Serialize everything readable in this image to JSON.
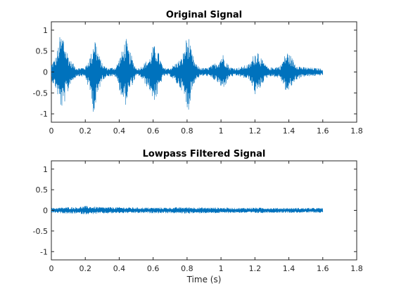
{
  "chart_data": [
    {
      "type": "line",
      "title": "Original Signal",
      "xlabel": "",
      "ylabel": "",
      "xlim": [
        0,
        1.8
      ],
      "ylim": [
        -1.2,
        1.2
      ],
      "xticks": [
        0,
        0.2,
        0.4,
        0.6,
        0.8,
        1,
        1.2,
        1.4,
        1.6,
        1.8
      ],
      "xtick_labels": [
        "0",
        "0.2",
        "0.4",
        "0.6",
        "0.8",
        "1",
        "1.2",
        "1.4",
        "1.6",
        "1.8"
      ],
      "yticks": [
        -1,
        -0.5,
        0,
        0.5,
        1
      ],
      "ytick_labels": [
        "-1",
        "-0.5",
        "0",
        "0.5",
        "1"
      ],
      "grid": false,
      "color": "#0072BD",
      "series": [
        {
          "x": [
            0,
            0.03,
            0.05,
            0.07,
            0.08,
            0.09,
            0.1,
            0.11,
            0.13,
            0.15,
            0.2,
            0.24,
            0.25,
            0.26,
            0.27,
            0.28,
            0.3,
            0.33,
            0.38,
            0.42,
            0.44,
            0.45,
            0.46,
            0.47,
            0.48,
            0.5,
            0.52,
            0.58,
            0.6,
            0.62,
            0.63,
            0.64,
            0.66,
            0.7,
            0.77,
            0.8,
            0.81,
            0.82,
            0.83,
            0.85,
            0.88,
            0.92,
            0.96,
            0.99,
            1.0,
            1.01,
            1.03,
            1.05,
            1.1,
            1.17,
            1.2,
            1.21,
            1.22,
            1.24,
            1.28,
            1.35,
            1.38,
            1.39,
            1.41,
            1.44,
            1.48,
            1.55,
            1.6
          ],
          "envelope_max": [
            0.2,
            0.4,
            0.85,
            0.95,
            0.7,
            0.55,
            0.45,
            0.3,
            0.2,
            0.1,
            0.12,
            0.5,
            0.9,
            0.85,
            0.6,
            0.45,
            0.2,
            0.1,
            0.12,
            0.55,
            0.85,
            0.65,
            0.5,
            0.45,
            0.3,
            0.1,
            0.1,
            0.35,
            0.65,
            0.6,
            0.5,
            0.35,
            0.1,
            0.1,
            0.35,
            0.9,
            0.85,
            0.6,
            0.45,
            0.2,
            0.1,
            0.1,
            0.2,
            0.3,
            0.4,
            0.45,
            0.3,
            0.12,
            0.1,
            0.2,
            0.5,
            0.5,
            0.55,
            0.3,
            0.1,
            0.15,
            0.45,
            0.5,
            0.4,
            0.2,
            0.12,
            0.1,
            0.08
          ],
          "envelope_min": [
            -0.2,
            -0.45,
            -0.8,
            -0.95,
            -0.7,
            -0.55,
            -0.5,
            -0.3,
            -0.2,
            -0.1,
            -0.12,
            -0.7,
            -1.05,
            -0.95,
            -0.7,
            -0.45,
            -0.2,
            -0.1,
            -0.12,
            -0.7,
            -0.8,
            -0.6,
            -0.5,
            -0.35,
            -0.3,
            -0.1,
            -0.1,
            -0.45,
            -0.7,
            -0.65,
            -0.5,
            -0.35,
            -0.1,
            -0.1,
            -0.45,
            -0.95,
            -0.9,
            -0.7,
            -0.45,
            -0.2,
            -0.1,
            -0.1,
            -0.2,
            -0.3,
            -0.45,
            -0.4,
            -0.3,
            -0.12,
            -0.1,
            -0.2,
            -0.55,
            -0.6,
            -0.5,
            -0.3,
            -0.1,
            -0.15,
            -0.45,
            -0.55,
            -0.4,
            -0.2,
            -0.12,
            -0.1,
            -0.08
          ]
        }
      ]
    },
    {
      "type": "line",
      "title": "Lowpass Filtered Signal",
      "xlabel": "Time (s)",
      "ylabel": "",
      "xlim": [
        0,
        1.8
      ],
      "ylim": [
        -1.2,
        1.2
      ],
      "xticks": [
        0,
        0.2,
        0.4,
        0.6,
        0.8,
        1,
        1.2,
        1.4,
        1.6,
        1.8
      ],
      "xtick_labels": [
        "0",
        "0.2",
        "0.4",
        "0.6",
        "0.8",
        "1",
        "1.2",
        "1.4",
        "1.6",
        "1.8"
      ],
      "yticks": [
        -1,
        -0.5,
        0,
        0.5,
        1
      ],
      "ytick_labels": [
        "-1",
        "-0.5",
        "0",
        "0.5",
        "1"
      ],
      "grid": false,
      "color": "#0072BD",
      "series": [
        {
          "x": [
            0,
            0.05,
            0.1,
            0.15,
            0.2,
            0.25,
            0.3,
            0.4,
            0.5,
            0.6,
            0.7,
            0.8,
            0.9,
            1.0,
            1.1,
            1.2,
            1.3,
            1.4,
            1.5,
            1.6
          ],
          "envelope_max": [
            0.06,
            0.07,
            0.08,
            0.08,
            0.11,
            0.09,
            0.08,
            0.08,
            0.07,
            0.07,
            0.07,
            0.08,
            0.07,
            0.07,
            0.06,
            0.07,
            0.06,
            0.06,
            0.06,
            0.06
          ],
          "envelope_min": [
            -0.06,
            -0.07,
            -0.09,
            -0.08,
            -0.1,
            -0.09,
            -0.08,
            -0.07,
            -0.07,
            -0.07,
            -0.07,
            -0.08,
            -0.07,
            -0.07,
            -0.06,
            -0.07,
            -0.06,
            -0.06,
            -0.06,
            -0.06
          ]
        }
      ]
    }
  ]
}
